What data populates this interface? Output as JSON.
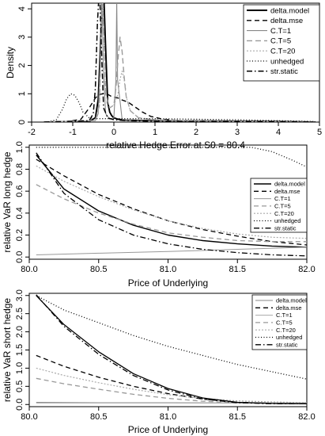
{
  "chart_data": [
    {
      "type": "line",
      "xlabel": "relative Hedge Error at S0 = 80.4",
      "ylabel": "Density",
      "xlim": [
        -2,
        5
      ],
      "ylim": [
        0,
        4.2
      ],
      "x_ticks": [
        "-2",
        "-1",
        "0",
        "1",
        "2",
        "3",
        "4",
        "5"
      ],
      "y_ticks": [
        "0",
        "1",
        "2",
        "3",
        "4"
      ],
      "grid": false,
      "legend_position": "top-right",
      "series": [
        {
          "name": "delta.model",
          "color": "#000000",
          "dash": "solid",
          "width": 1.9,
          "x": [
            -1.7,
            -0.6,
            -0.45,
            -0.38,
            -0.33,
            -0.28,
            -0.24,
            -0.2,
            -0.15,
            -0.1,
            -0.05,
            0.0,
            0.1,
            0.3,
            0.6,
            1.0,
            2.0,
            3.0,
            4.0,
            4.9
          ],
          "y": [
            0.0,
            0.02,
            0.15,
            0.8,
            2.5,
            4.3,
            4.3,
            2.6,
            0.7,
            0.35,
            0.22,
            0.15,
            0.1,
            0.07,
            0.06,
            0.05,
            0.04,
            0.03,
            0.02,
            0.0
          ]
        },
        {
          "name": "delta.mse",
          "color": "#000000",
          "dash": "6,4",
          "width": 1.4,
          "x": [
            -1.2,
            -0.8,
            -0.6,
            -0.45,
            -0.35,
            -0.25,
            -0.15,
            -0.05,
            0.1,
            0.2,
            0.35,
            0.5,
            0.7,
            0.9,
            1.2,
            1.6,
            2.0,
            3.0,
            4.0
          ],
          "y": [
            0.0,
            0.1,
            0.5,
            0.85,
            0.98,
            1.0,
            0.98,
            0.9,
            0.85,
            0.78,
            0.7,
            0.55,
            0.35,
            0.2,
            0.1,
            0.05,
            0.02,
            0.01,
            0.0
          ]
        },
        {
          "name": "C.T=1",
          "color": "#888888",
          "dash": "solid",
          "width": 1.1,
          "x": [
            -1.7,
            -0.45,
            -0.38,
            -0.32,
            -0.3,
            -0.28,
            -0.26,
            -0.2,
            -0.1,
            0.0,
            0.05,
            0.07,
            0.09,
            0.2,
            0.5,
            1.0,
            2.0,
            3.0,
            4.0,
            4.9
          ],
          "y": [
            0.0,
            0.05,
            0.3,
            2.5,
            4.3,
            4.3,
            2.0,
            0.3,
            0.1,
            0.15,
            1.5,
            4.3,
            1.5,
            0.1,
            0.05,
            0.04,
            0.03,
            0.02,
            0.01,
            0.0
          ]
        },
        {
          "name": "C.T=5",
          "color": "#9a9a9a",
          "dash": "7,4",
          "width": 1.4,
          "x": [
            -1.7,
            -0.45,
            -0.35,
            -0.3,
            -0.27,
            -0.24,
            -0.2,
            -0.1,
            0.0,
            0.05,
            0.1,
            0.15,
            0.2,
            0.25,
            0.3,
            0.4,
            0.6,
            1.0,
            2.0,
            3.0,
            4.0
          ],
          "y": [
            0.0,
            0.05,
            0.6,
            3.5,
            4.3,
            3.0,
            1.0,
            0.5,
            0.6,
            1.2,
            2.2,
            3.0,
            2.5,
            1.6,
            0.9,
            0.4,
            0.15,
            0.08,
            0.04,
            0.02,
            0.0
          ]
        },
        {
          "name": "C.T=20",
          "color": "#aaaaaa",
          "dash": "2,2",
          "width": 1.2,
          "x": [
            -1.7,
            -0.45,
            -0.35,
            -0.3,
            -0.27,
            -0.24,
            -0.2,
            -0.1,
            0.0,
            0.1,
            0.15,
            0.2,
            0.25,
            0.3,
            0.4,
            0.6,
            1.0,
            2.0,
            3.0,
            4.0
          ],
          "y": [
            0.0,
            0.05,
            0.6,
            3.5,
            4.3,
            3.0,
            1.0,
            0.5,
            0.6,
            1.0,
            1.5,
            1.8,
            1.5,
            0.9,
            0.4,
            0.15,
            0.08,
            0.04,
            0.02,
            0.0
          ]
        },
        {
          "name": "unhedged",
          "color": "#000000",
          "dash": "1,2.5",
          "width": 1.3,
          "x": [
            -1.6,
            -1.4,
            -1.25,
            -1.15,
            -1.05,
            -0.95,
            -0.85,
            -0.75,
            -0.6,
            -0.4,
            0.0,
            0.5,
            1.0,
            2.0,
            3.0,
            4.0,
            4.9
          ],
          "y": [
            0.0,
            0.08,
            0.45,
            0.82,
            1.0,
            0.95,
            0.7,
            0.35,
            0.15,
            0.12,
            0.12,
            0.12,
            0.12,
            0.1,
            0.08,
            0.05,
            0.02
          ]
        },
        {
          "name": "str.static",
          "color": "#000000",
          "dash": "7,3,1.5,3",
          "width": 1.5,
          "x": [
            -1.7,
            -0.6,
            -0.5,
            -0.45,
            -0.4,
            -0.37,
            -0.34,
            -0.3,
            -0.25,
            -0.15,
            0.0,
            0.3,
            1.0,
            2.0,
            4.0,
            4.9
          ],
          "y": [
            0.0,
            0.05,
            0.3,
            1.2,
            3.5,
            4.3,
            4.3,
            2.5,
            0.5,
            0.15,
            0.08,
            0.05,
            0.03,
            0.02,
            0.01,
            0.0
          ]
        }
      ]
    },
    {
      "type": "line",
      "xlabel": "Price of Underlying",
      "ylabel": "relative VaR long hedge",
      "xlim": [
        80.0,
        82.0
      ],
      "ylim": [
        -0.02,
        1.02
      ],
      "x_ticks": [
        "80.0",
        "80.5",
        "81.0",
        "81.5",
        "82.0"
      ],
      "y_ticks": [
        "0.0",
        "0.2",
        "0.4",
        "0.6",
        "0.8",
        "1.0"
      ],
      "grid": false,
      "legend_position": "right",
      "series": [
        {
          "name": "delta.model",
          "color": "#000000",
          "dash": "solid",
          "width": 1.4,
          "x": [
            80.05,
            80.25,
            80.5,
            80.75,
            81.0,
            81.25,
            81.5,
            81.75,
            82.0
          ],
          "y": [
            0.93,
            0.62,
            0.42,
            0.29,
            0.2,
            0.15,
            0.12,
            0.1,
            0.09
          ]
        },
        {
          "name": "delta.mse",
          "color": "#000000",
          "dash": "6,4",
          "width": 1.3,
          "x": [
            80.05,
            80.25,
            80.5,
            80.75,
            81.0,
            81.25,
            81.5,
            81.75,
            82.0
          ],
          "y": [
            0.89,
            0.74,
            0.57,
            0.44,
            0.33,
            0.25,
            0.19,
            0.14,
            0.11
          ]
        },
        {
          "name": "C.T=1",
          "color": "#999999",
          "dash": "solid",
          "width": 1.0,
          "x": [
            80.05,
            80.5,
            81.0,
            81.5,
            82.0
          ],
          "y": [
            0.02,
            0.035,
            0.05,
            0.07,
            0.09
          ]
        },
        {
          "name": "C.T=5",
          "color": "#999999",
          "dash": "6,4",
          "width": 1.3,
          "x": [
            80.05,
            80.25,
            80.5,
            80.75,
            81.0,
            81.25,
            81.5,
            81.75,
            82.0
          ],
          "y": [
            0.66,
            0.53,
            0.4,
            0.3,
            0.22,
            0.18,
            0.15,
            0.14,
            0.14
          ]
        },
        {
          "name": "C.T=20",
          "color": "#aaaaaa",
          "dash": "2,2",
          "width": 1.2,
          "x": [
            80.05,
            80.25,
            80.5,
            80.75,
            81.0,
            81.25,
            81.5,
            81.75,
            82.0
          ],
          "y": [
            0.83,
            0.69,
            0.55,
            0.43,
            0.33,
            0.26,
            0.21,
            0.18,
            0.17
          ]
        },
        {
          "name": "unhedged",
          "color": "#000000",
          "dash": "1,2.5",
          "width": 1.3,
          "x": [
            80.05,
            80.5,
            81.0,
            81.5,
            81.6,
            81.75,
            81.9,
            82.0
          ],
          "y": [
            1.0,
            1.0,
            1.0,
            1.0,
            1.0,
            0.96,
            0.88,
            0.82
          ]
        },
        {
          "name": "str.static",
          "color": "#000000",
          "dash": "7,3,1.5,3",
          "width": 1.3,
          "x": [
            80.05,
            80.25,
            80.5,
            80.75,
            81.0,
            81.25,
            81.5,
            81.75,
            82.0
          ],
          "y": [
            0.95,
            0.58,
            0.34,
            0.2,
            0.12,
            0.07,
            0.04,
            0.02,
            0.01
          ]
        }
      ]
    },
    {
      "type": "line",
      "xlabel": "Price of Underlying",
      "ylabel": "relative VaR short hedge",
      "xlim": [
        80.0,
        82.0
      ],
      "ylim": [
        -0.06,
        3.06
      ],
      "x_ticks": [
        "80.0",
        "80.5",
        "81.0",
        "81.5",
        "82.0"
      ],
      "y_ticks": [
        "0.0",
        "0.5",
        "1.0",
        "1.5",
        "2.0",
        "2.5",
        "3.0"
      ],
      "grid": false,
      "legend_position": "top-right",
      "series": [
        {
          "name": "delta.model",
          "color": "#888888",
          "dash": "solid",
          "width": 1.1,
          "x": [
            80.05,
            80.5,
            81.0,
            81.5,
            82.0
          ],
          "y": [
            0.06,
            0.05,
            0.05,
            0.04,
            0.04
          ]
        },
        {
          "name": "delta.mse",
          "color": "#000000",
          "dash": "6,4",
          "width": 1.3,
          "x": [
            80.05,
            80.25,
            80.5,
            80.75,
            81.0,
            81.25,
            81.5,
            81.75,
            82.0
          ],
          "y": [
            1.35,
            1.05,
            0.75,
            0.5,
            0.3,
            0.15,
            0.06,
            0.03,
            0.02
          ]
        },
        {
          "name": "C.T=1",
          "color": "#aaaaaa",
          "dash": "solid",
          "width": 1.0,
          "x": [
            80.05,
            80.5,
            81.0,
            81.5,
            82.0
          ],
          "y": [
            0.04,
            0.04,
            0.04,
            0.04,
            0.04
          ]
        },
        {
          "name": "C.T=5",
          "color": "#999999",
          "dash": "6,4",
          "width": 1.3,
          "x": [
            80.05,
            80.25,
            80.5,
            80.75,
            81.0,
            81.25,
            81.5,
            81.75,
            82.0
          ],
          "y": [
            0.72,
            0.57,
            0.42,
            0.28,
            0.17,
            0.09,
            0.05,
            0.04,
            0.04
          ]
        },
        {
          "name": "C.T=20",
          "color": "#aaaaaa",
          "dash": "2,2",
          "width": 1.2,
          "x": [
            80.05,
            80.25,
            80.5,
            80.75,
            81.0,
            81.25,
            81.5,
            81.75,
            82.0
          ],
          "y": [
            1.0,
            0.8,
            0.6,
            0.42,
            0.27,
            0.16,
            0.1,
            0.07,
            0.05
          ]
        },
        {
          "name": "unhedged",
          "color": "#000000",
          "dash": "1,2.5",
          "width": 1.3,
          "x": [
            80.05,
            80.25,
            80.5,
            80.75,
            81.0,
            81.25,
            81.5,
            81.75,
            82.0
          ],
          "y": [
            3.0,
            2.6,
            2.25,
            1.9,
            1.6,
            1.35,
            1.1,
            0.9,
            0.7
          ]
        },
        {
          "name": "str.static",
          "color": "#000000",
          "dash": "7,3,1.5,3",
          "width": 1.3,
          "x": [
            80.05,
            80.25,
            80.5,
            80.75,
            81.0,
            81.25,
            81.5,
            81.75,
            82.0
          ],
          "y": [
            3.02,
            2.15,
            1.38,
            0.8,
            0.4,
            0.15,
            0.05,
            0.02,
            0.02
          ]
        },
        {
          "name": "",
          "color": "#000000",
          "dash": "solid",
          "width": 1.3,
          "x": [
            80.05,
            80.25,
            80.5,
            80.75,
            81.0,
            81.25,
            81.5,
            81.75,
            82.0
          ],
          "y": [
            3.0,
            2.2,
            1.45,
            0.85,
            0.44,
            0.18,
            0.06,
            0.03,
            0.02
          ]
        }
      ]
    }
  ]
}
